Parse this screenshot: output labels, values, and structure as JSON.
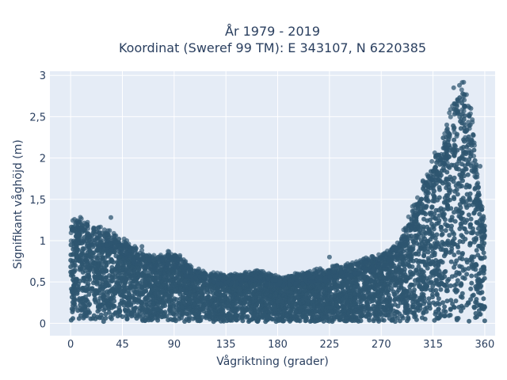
{
  "chart_data": {
    "type": "scatter",
    "title_line1": "År 1979 - 2019",
    "title_line2": "Koordinat (Sweref 99 TM): E 343107, N 6220385",
    "xlabel": "Vågriktning (grader)",
    "ylabel": "Signifikant våghöjd (m)",
    "xlim": [
      -18,
      369
    ],
    "ylim": [
      -0.15,
      3.05
    ],
    "x_ticks": [
      0,
      45,
      90,
      135,
      180,
      225,
      270,
      315,
      360
    ],
    "x_tick_labels": [
      "0",
      "45",
      "90",
      "135",
      "180",
      "225",
      "270",
      "315",
      "360"
    ],
    "y_ticks": [
      0,
      0.5,
      1,
      1.5,
      2,
      2.5,
      3
    ],
    "y_tick_labels": [
      "0",
      "0,5",
      "1",
      "1,5",
      "2",
      "2,5",
      "3"
    ],
    "grid": true,
    "marker_color": "#2e5670",
    "background_color": "#e5ecf6",
    "envelope": [
      [
        0,
        1.2
      ],
      [
        5,
        1.25
      ],
      [
        15,
        1.2
      ],
      [
        30,
        1.1
      ],
      [
        45,
        1.0
      ],
      [
        60,
        0.85
      ],
      [
        75,
        0.8
      ],
      [
        90,
        0.85
      ],
      [
        105,
        0.65
      ],
      [
        120,
        0.6
      ],
      [
        135,
        0.58
      ],
      [
        150,
        0.6
      ],
      [
        165,
        0.62
      ],
      [
        180,
        0.55
      ],
      [
        195,
        0.58
      ],
      [
        210,
        0.62
      ],
      [
        225,
        0.65
      ],
      [
        240,
        0.7
      ],
      [
        255,
        0.75
      ],
      [
        270,
        0.82
      ],
      [
        285,
        0.95
      ],
      [
        295,
        1.3
      ],
      [
        305,
        1.6
      ],
      [
        315,
        1.95
      ],
      [
        325,
        2.3
      ],
      [
        335,
        2.7
      ],
      [
        340,
        2.85
      ],
      [
        345,
        2.7
      ],
      [
        350,
        2.3
      ],
      [
        355,
        1.6
      ],
      [
        360,
        1.2
      ]
    ],
    "outliers": [
      [
        35,
        1.28
      ],
      [
        62,
        0.93
      ],
      [
        95,
        0.82
      ],
      [
        225,
        0.8
      ],
      [
        300,
        1.4
      ],
      [
        305,
        1.5
      ],
      [
        327,
        2.4
      ],
      [
        333,
        2.85
      ],
      [
        338,
        2.88
      ],
      [
        342,
        2.75
      ],
      [
        348,
        2.6
      ],
      [
        356,
        1.9
      ]
    ]
  }
}
